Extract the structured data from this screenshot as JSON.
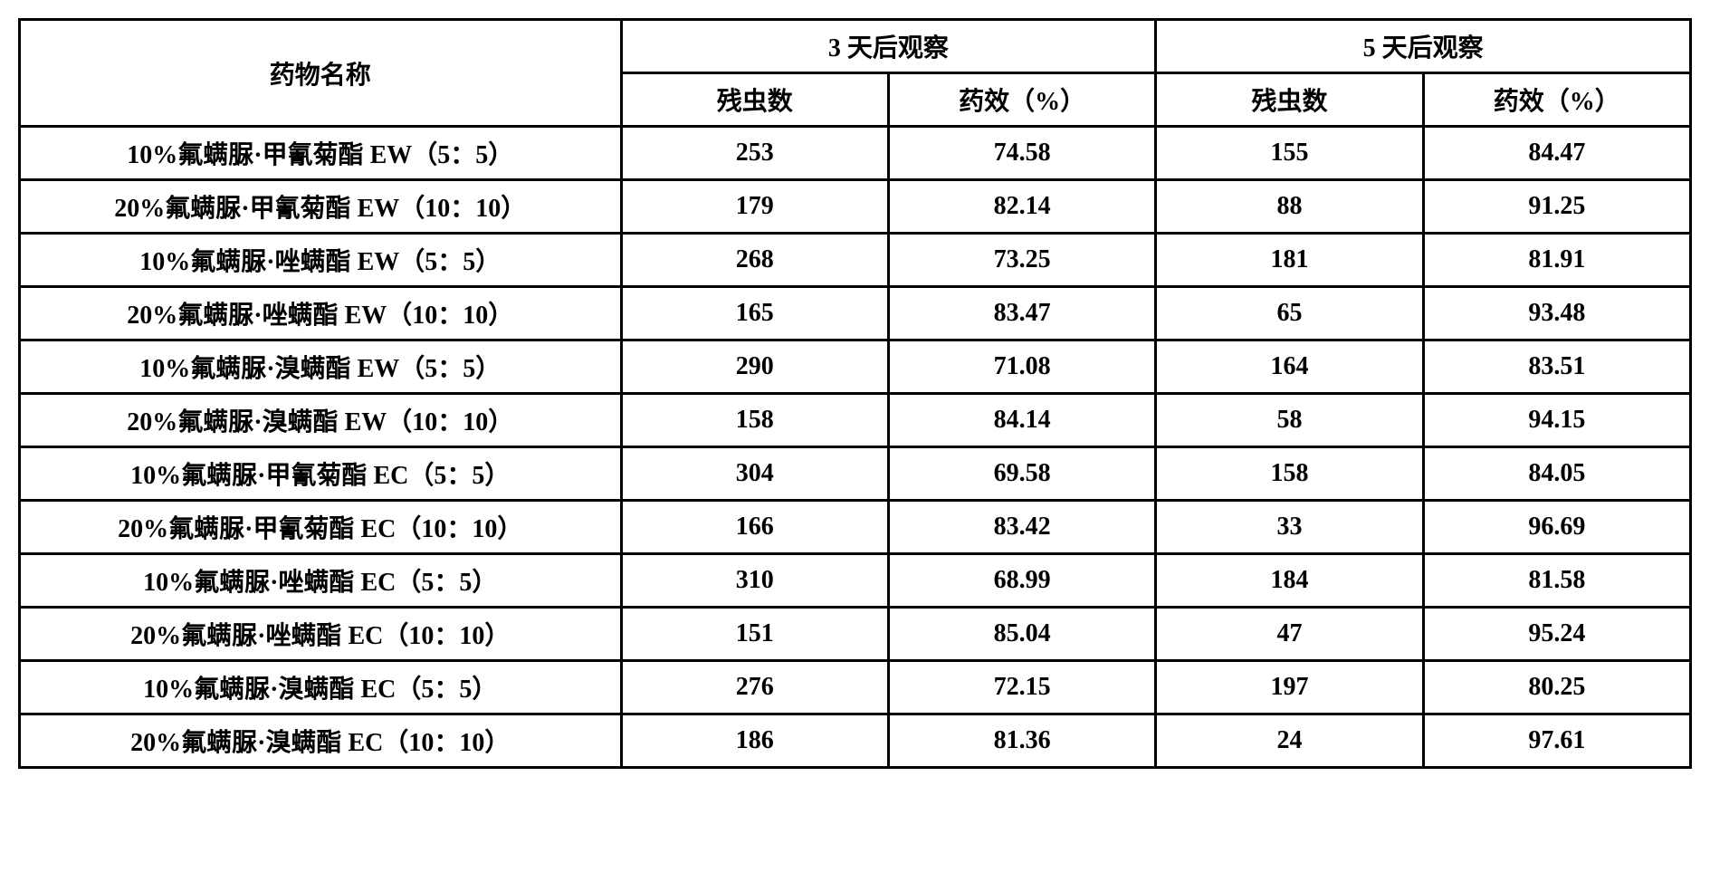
{
  "table": {
    "type": "table",
    "border_color": "#000000",
    "border_width": 3,
    "background_color": "#ffffff",
    "text_color": "#000000",
    "font_weight": "bold",
    "font_size_pt": 28,
    "header": {
      "name": "药物名称",
      "group3": "3 天后观察",
      "group5": "5 天后观察",
      "sub_residual": "残虫数",
      "sub_efficacy": "药效（%）"
    },
    "columns": [
      {
        "key": "name",
        "label": "药物名称",
        "width": "36%",
        "align": "center"
      },
      {
        "key": "res3",
        "label": "残虫数",
        "width": "16%",
        "align": "center"
      },
      {
        "key": "eff3",
        "label": "药效（%）",
        "width": "16%",
        "align": "center"
      },
      {
        "key": "res5",
        "label": "残虫数",
        "width": "16%",
        "align": "center"
      },
      {
        "key": "eff5",
        "label": "药效（%）",
        "width": "16%",
        "align": "center"
      }
    ],
    "rows": [
      {
        "name": "10%氟螨脲·甲氰菊酯 EW（5：5）",
        "res3": "253",
        "eff3": "74.58",
        "res5": "155",
        "eff5": "84.47"
      },
      {
        "name": "20%氟螨脲·甲氰菊酯 EW（10：10）",
        "res3": "179",
        "eff3": "82.14",
        "res5": "88",
        "eff5": "91.25"
      },
      {
        "name": "10%氟螨脲·唑螨酯 EW（5：5）",
        "res3": "268",
        "eff3": "73.25",
        "res5": "181",
        "eff5": "81.91"
      },
      {
        "name": "20%氟螨脲·唑螨酯 EW（10：10）",
        "res3": "165",
        "eff3": "83.47",
        "res5": "65",
        "eff5": "93.48"
      },
      {
        "name": "10%氟螨脲·溴螨酯 EW（5：5）",
        "res3": "290",
        "eff3": "71.08",
        "res5": "164",
        "eff5": "83.51"
      },
      {
        "name": "20%氟螨脲·溴螨酯 EW（10：10）",
        "res3": "158",
        "eff3": "84.14",
        "res5": "58",
        "eff5": "94.15"
      },
      {
        "name": "10%氟螨脲·甲氰菊酯 EC（5：5）",
        "res3": "304",
        "eff3": "69.58",
        "res5": "158",
        "eff5": "84.05"
      },
      {
        "name": "20%氟螨脲·甲氰菊酯 EC（10：10）",
        "res3": "166",
        "eff3": "83.42",
        "res5": "33",
        "eff5": "96.69"
      },
      {
        "name": "10%氟螨脲·唑螨酯 EC（5：5）",
        "res3": "310",
        "eff3": "68.99",
        "res5": "184",
        "eff5": "81.58"
      },
      {
        "name": "20%氟螨脲·唑螨酯 EC（10：10）",
        "res3": "151",
        "eff3": "85.04",
        "res5": "47",
        "eff5": "95.24"
      },
      {
        "name": "10%氟螨脲·溴螨酯 EC（5：5）",
        "res3": "276",
        "eff3": "72.15",
        "res5": "197",
        "eff5": "80.25"
      },
      {
        "name": "20%氟螨脲·溴螨酯 EC（10：10）",
        "res3": "186",
        "eff3": "81.36",
        "res5": "24",
        "eff5": "97.61"
      }
    ]
  }
}
